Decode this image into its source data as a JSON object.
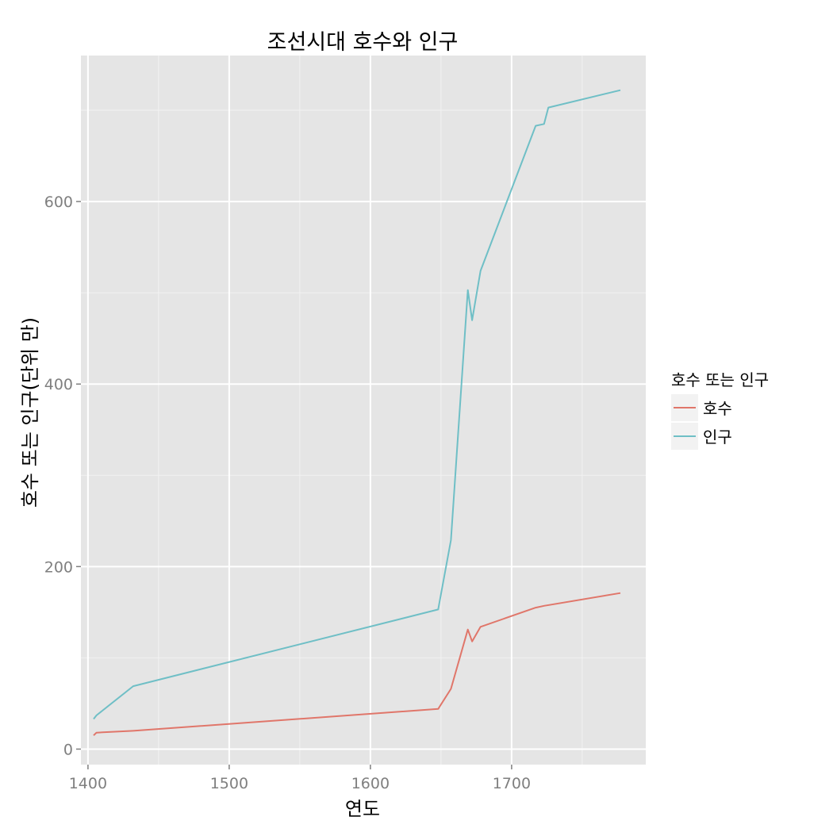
{
  "chart_data": {
    "type": "line",
    "title": "조선시대 호수와 인구",
    "xlabel": "연도",
    "ylabel": "호수 또는 인구(단위 만)",
    "xlim": [
      1395,
      1795
    ],
    "ylim": [
      -17,
      760
    ],
    "x_ticks": [
      1400,
      1500,
      1600,
      1700
    ],
    "y_ticks": [
      0,
      200,
      400,
      600
    ],
    "grid": true,
    "legend": {
      "title": "호수 또는 인구",
      "position": "right"
    },
    "series": [
      {
        "name": "호수",
        "color": "#E0766A",
        "x": [
          1404,
          1406,
          1432,
          1648,
          1657,
          1669,
          1672,
          1678,
          1717,
          1723,
          1777
        ],
        "y": [
          15,
          18,
          20,
          44,
          66,
          131,
          118,
          134,
          155,
          157,
          171
        ]
      },
      {
        "name": "인구",
        "color": "#6FBFC6",
        "x": [
          1404,
          1406,
          1432,
          1648,
          1657,
          1669,
          1672,
          1678,
          1717,
          1723,
          1726,
          1777
        ],
        "y": [
          33,
          37,
          69,
          153,
          229,
          503,
          470,
          524,
          683,
          685,
          703,
          722
        ]
      }
    ]
  }
}
